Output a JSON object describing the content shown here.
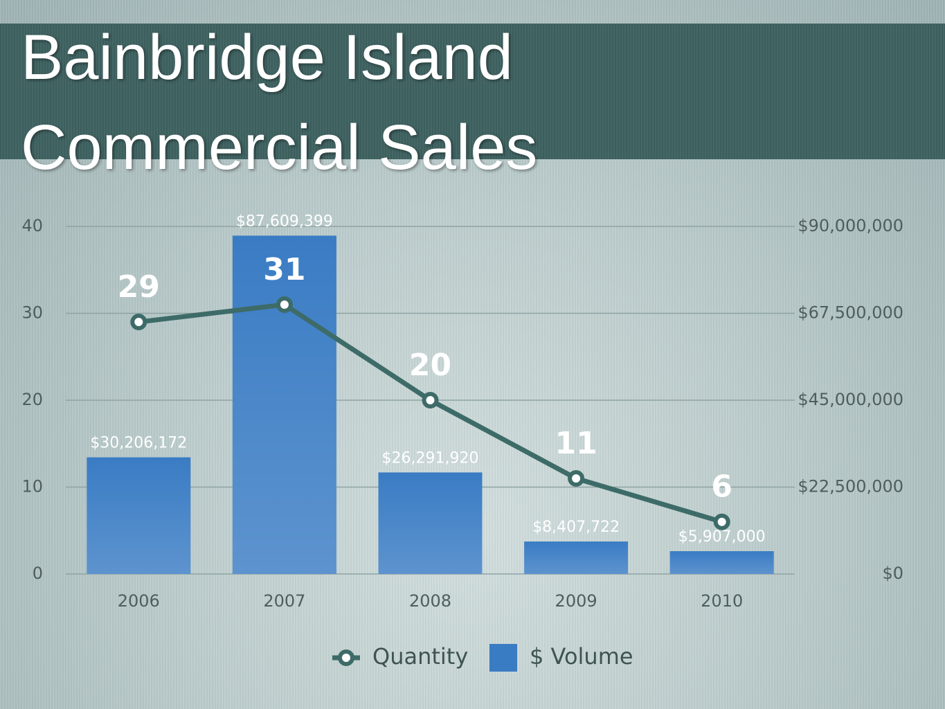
{
  "chart_data": {
    "type": "combo",
    "title": "Bainbridge Island Commercial Sales",
    "categories": [
      "2006",
      "2007",
      "2008",
      "2009",
      "2010"
    ],
    "ylim": [
      0,
      40
    ],
    "yticks": [
      0,
      10,
      20,
      30,
      40
    ],
    "y2lim": [
      0,
      90000000
    ],
    "y2ticks": [
      {
        "value": 0,
        "label": "$0"
      },
      {
        "value": 22500000,
        "label": "$22,500,000"
      },
      {
        "value": 45000000,
        "label": "$45,000,000"
      },
      {
        "value": 67500000,
        "label": "$67,500,000"
      },
      {
        "value": 90000000,
        "label": "$90,000,000"
      }
    ],
    "grid": true,
    "series": [
      {
        "name": "Quantity",
        "type": "line",
        "color": "#3d6b68",
        "values": [
          29,
          31,
          20,
          11,
          6
        ]
      },
      {
        "name": "$ Volume",
        "type": "bar",
        "axis": "y2",
        "color": "#3a7cc4",
        "values": [
          30206172,
          87609399,
          26291920,
          8407722,
          5907000
        ],
        "value_labels": [
          "$30,206,172",
          "$87,609,399",
          "$26,291,920",
          "$8,407,722",
          "$5,907,000"
        ]
      }
    ]
  }
}
